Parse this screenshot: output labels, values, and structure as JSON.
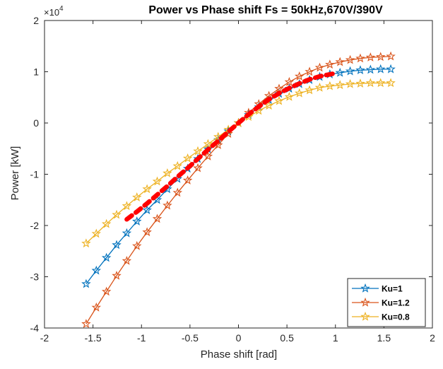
{
  "chart_data": {
    "type": "line",
    "title": "Power vs Phase shift Fs = 50kHz,670V/390V",
    "xlabel": "Phase shift [rad]",
    "ylabel": "Power [kW]",
    "y_exponent_label": "×10",
    "y_exponent_power": "4",
    "xlim": [
      -2,
      2
    ],
    "ylim": [
      -40000,
      20000
    ],
    "xticks": [
      -2,
      -1.5,
      -1,
      -0.5,
      0,
      0.5,
      1,
      1.5,
      2
    ],
    "xtick_labels": [
      "-2",
      "-1.5",
      "-1",
      "-0.5",
      "0",
      "0.5",
      "1",
      "1.5",
      "2"
    ],
    "yticks": [
      -40000,
      -30000,
      -20000,
      -10000,
      0,
      10000,
      20000
    ],
    "ytick_labels": [
      "-4",
      "-3",
      "-2",
      "-1",
      "0",
      "1",
      "2"
    ],
    "grid": false,
    "legend_position": "bottom-right",
    "x": [
      -1.5708,
      -1.4661,
      -1.3614,
      -1.2566,
      -1.1519,
      -1.0472,
      -0.9425,
      -0.8378,
      -0.733,
      -0.6283,
      -0.5236,
      -0.4189,
      -0.3142,
      -0.2094,
      -0.1047,
      0,
      0.1047,
      0.2094,
      0.3142,
      0.4189,
      0.5236,
      0.6283,
      0.733,
      0.8378,
      0.9425,
      1.0472,
      1.1519,
      1.2566,
      1.3614,
      1.4661,
      1.5708
    ],
    "series": [
      {
        "name": "Ku=1",
        "color": "#0072BD",
        "marker": "star",
        "values": [
          -31400,
          -28800,
          -26300,
          -23800,
          -21500,
          -19200,
          -17000,
          -15000,
          -12900,
          -10900,
          -8900,
          -7000,
          -5100,
          -3300,
          -1600,
          0,
          1600,
          3100,
          4500,
          5700,
          6700,
          7600,
          8400,
          9000,
          9500,
          9800,
          10100,
          10300,
          10400,
          10500,
          10500
        ]
      },
      {
        "name": "Ku=1.2",
        "color": "#D95319",
        "marker": "star",
        "values": [
          -39200,
          -36000,
          -32900,
          -29800,
          -26900,
          -24000,
          -21300,
          -18700,
          -16100,
          -13600,
          -11200,
          -8800,
          -6500,
          -4300,
          -2100,
          0,
          2000,
          3700,
          5300,
          6700,
          8000,
          9100,
          10000,
          10800,
          11400,
          11900,
          12300,
          12600,
          12800,
          12900,
          13000
        ]
      },
      {
        "name": "Ku=0.8",
        "color": "#EDB120",
        "marker": "star",
        "values": [
          -23500,
          -21600,
          -19700,
          -17900,
          -16200,
          -14500,
          -12900,
          -11400,
          -9800,
          -8400,
          -6900,
          -5500,
          -4100,
          -2700,
          -1300,
          0,
          1200,
          2400,
          3400,
          4300,
          5100,
          5800,
          6400,
          6900,
          7200,
          7400,
          7600,
          7700,
          7800,
          7800,
          7800
        ]
      },
      {
        "color": "#FF0000",
        "style": "dashed-thick",
        "x": [
          -1.1519,
          -1.0472,
          -0.9425,
          -0.8378,
          -0.733,
          -0.6283,
          -0.5236,
          -0.4189,
          -0.3142,
          -0.2094,
          -0.1047,
          0,
          0.1047,
          0.2094,
          0.3142,
          0.4189,
          0.5236,
          0.6283,
          0.733,
          0.8378,
          0.9425,
          1.0
        ],
        "values": [
          -18800,
          -17300,
          -15700,
          -14000,
          -12300,
          -10500,
          -8800,
          -7000,
          -5200,
          -3500,
          -1700,
          0,
          1700,
          3200,
          4600,
          5800,
          6800,
          7700,
          8500,
          9100,
          9500,
          9700
        ]
      }
    ]
  }
}
